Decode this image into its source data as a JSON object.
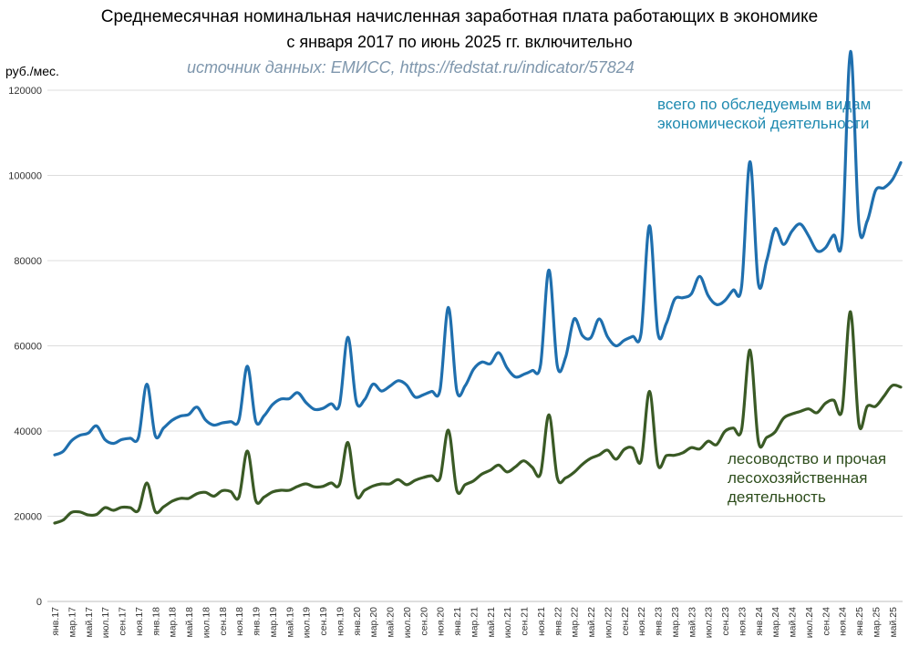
{
  "chart_data": {
    "type": "line",
    "title": "Среднемесячная номинальная начисленная заработная плата работающих в экономике",
    "subtitle": "с января 2017 по июнь 2025 гг. включительно",
    "source": "источник данных: ЕМИСС, https://fedstat.ru/indicator/57824",
    "ylabel": "руб./мес.",
    "ylim": [
      0,
      120000
    ],
    "yticks": [
      "0",
      "20000",
      "40000",
      "60000",
      "80000",
      "100000",
      "120000"
    ],
    "grid": true,
    "x_labels": [
      "янв.17",
      "мар.17",
      "май.17",
      "июл.17",
      "сен.17",
      "ноя.17",
      "янв.18",
      "мар.18",
      "май.18",
      "июл.18",
      "сен.18",
      "ноя.18",
      "янв.19",
      "мар.19",
      "май.19",
      "июл.19",
      "сен.19",
      "ноя.19",
      "янв.20",
      "мар.20",
      "май.20",
      "июл.20",
      "сен.20",
      "ноя.20",
      "янв.21",
      "мар.21",
      "май.21",
      "июл.21",
      "сен.21",
      "ноя.21",
      "янв.22",
      "мар.22",
      "май.22",
      "июл.22",
      "сен.22",
      "ноя.22",
      "янв.23",
      "мар.23",
      "май.23",
      "июл.23",
      "сен.23",
      "ноя.23",
      "янв.24",
      "мар.24",
      "май.24",
      "июл.24",
      "сен.24",
      "ноя.24",
      "янв.25",
      "мар.25",
      "май.25"
    ],
    "series": [
      {
        "name": "всего по обследуемым видам экономической деятельности",
        "color": "#1f6fae",
        "label_color": "#1f8ab0",
        "values": [
          34400,
          35200,
          37700,
          39000,
          39500,
          41200,
          38000,
          37100,
          38000,
          38300,
          38500,
          51000,
          38900,
          40700,
          42500,
          43500,
          43900,
          45600,
          42600,
          41400,
          41900,
          42200,
          42600,
          55200,
          42300,
          43600,
          46200,
          47500,
          47600,
          49000,
          46700,
          45100,
          45300,
          46400,
          46200,
          62000,
          46900,
          47400,
          51000,
          49400,
          50500,
          51800,
          50800,
          48000,
          48500,
          49300,
          49700,
          69000,
          49500,
          50600,
          54500,
          56200,
          55800,
          58400,
          54800,
          52700,
          53300,
          54200,
          55500,
          77800,
          55300,
          57400,
          66300,
          62400,
          61900,
          66300,
          62100,
          60000,
          61300,
          62200,
          63000,
          88200,
          63100,
          65200,
          70900,
          71300,
          72200,
          76300,
          71800,
          69700,
          70600,
          73100,
          73900,
          103200,
          74600,
          80100,
          87500,
          83800,
          86900,
          88600,
          85800,
          82300,
          83000,
          86000,
          85100,
          129100,
          88400,
          89300,
          96500,
          97100,
          99000,
          103000
        ]
      },
      {
        "name": "лесоводство и прочая лесохозяйственная деятельность",
        "color": "#3a5a25",
        "label_color": "#2d4d1c",
        "values": [
          18400,
          19100,
          20900,
          21000,
          20300,
          20400,
          22000,
          21400,
          22100,
          22000,
          21400,
          27800,
          21100,
          22200,
          23500,
          24200,
          24200,
          25300,
          25600,
          24700,
          26000,
          25800,
          24500,
          35300,
          23700,
          24500,
          25700,
          26100,
          26100,
          27000,
          27600,
          26900,
          27000,
          27800,
          27500,
          37300,
          24900,
          26100,
          27100,
          27600,
          27600,
          28600,
          27400,
          28400,
          29100,
          29500,
          29000,
          40200,
          26100,
          27400,
          28300,
          29900,
          30800,
          32000,
          30400,
          31600,
          33000,
          31500,
          30000,
          43800,
          29000,
          29000,
          30300,
          32200,
          33600,
          34400,
          35500,
          33400,
          35700,
          36000,
          33000,
          49300,
          32200,
          34200,
          34300,
          34900,
          36100,
          35800,
          37600,
          36800,
          39900,
          40700,
          40300,
          59000,
          37600,
          38500,
          39800,
          43000,
          44000,
          44600,
          45200,
          44300,
          46500,
          47200,
          45000,
          68000,
          41600,
          45800,
          45800,
          48200,
          50700,
          50300
        ]
      }
    ]
  }
}
